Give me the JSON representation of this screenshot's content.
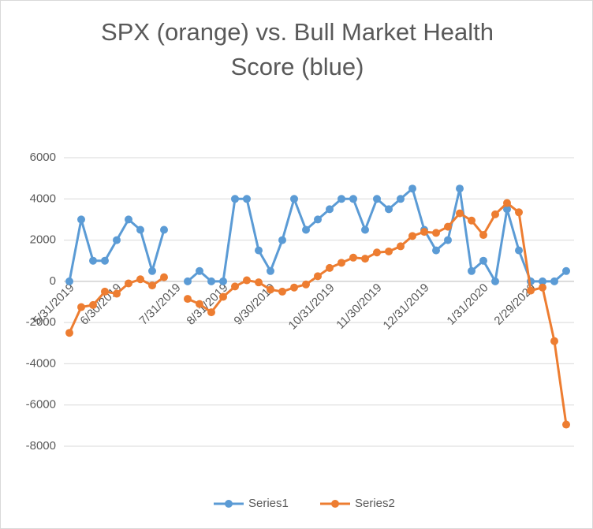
{
  "chart_data": {
    "type": "line",
    "title": "SPX (orange) vs. Bull Market Health Score (blue)",
    "categories": [
      "5/31/2019",
      null,
      null,
      null,
      "6/30/2019",
      null,
      null,
      null,
      null,
      "7/31/2019",
      null,
      null,
      null,
      "8/31/2019",
      null,
      null,
      null,
      "9/30/2019",
      null,
      null,
      null,
      null,
      "10/31/2019",
      null,
      null,
      null,
      "11/30/2019",
      null,
      null,
      null,
      "12/31/2019",
      null,
      null,
      null,
      null,
      "1/31/2020",
      null,
      null,
      null,
      "2/29/2020",
      null,
      null,
      null
    ],
    "series": [
      {
        "name": "Series1",
        "color": "#5b9bd5",
        "values": [
          0,
          3000,
          1000,
          1000,
          2000,
          3000,
          2500,
          500,
          2500,
          null,
          0,
          500,
          0,
          0,
          4000,
          4000,
          1500,
          500,
          2000,
          4000,
          2500,
          3000,
          3500,
          4000,
          4000,
          2500,
          4000,
          3500,
          4000,
          4500,
          2500,
          1500,
          2000,
          4500,
          500,
          1000,
          0,
          3500,
          1500,
          0,
          0,
          0,
          500
        ]
      },
      {
        "name": "Series2",
        "color": "#ed7d31",
        "values": [
          -2500,
          -1250,
          -1150,
          -500,
          -600,
          -100,
          100,
          -200,
          200,
          null,
          -850,
          -1100,
          -1500,
          -750,
          -250,
          50,
          -50,
          -400,
          -500,
          -300,
          -150,
          250,
          650,
          900,
          1150,
          1100,
          1400,
          1450,
          1700,
          2200,
          2400,
          2350,
          2650,
          3300,
          2950,
          2250,
          3250,
          3800,
          3350,
          -450,
          -300,
          -2900,
          -6950
        ]
      }
    ],
    "ylim": [
      -8000,
      6000
    ],
    "yticks": [
      6000,
      4000,
      2000,
      0,
      -2000,
      -4000,
      -6000,
      -8000
    ],
    "grid": true
  }
}
